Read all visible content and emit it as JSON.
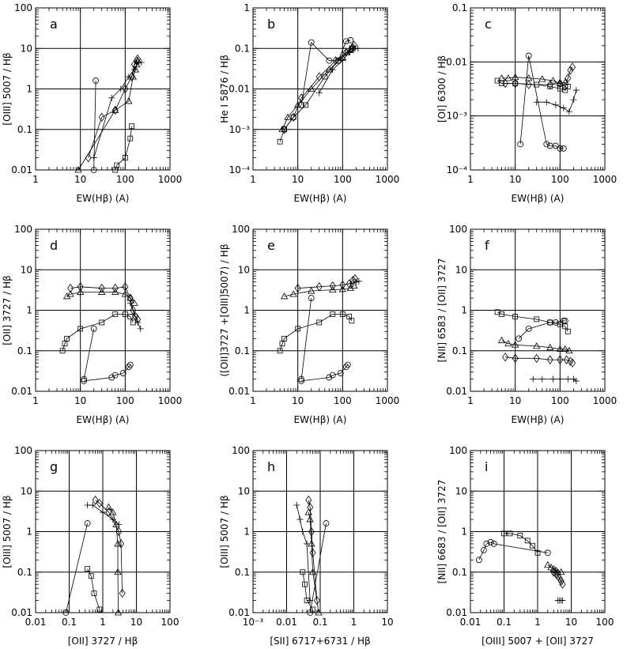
{
  "chart_data": [
    {
      "panel": "a",
      "type": "line",
      "xscale": "log",
      "yscale": "log",
      "xlim": [
        1,
        1000
      ],
      "ylim": [
        0.01,
        100
      ],
      "xticks": [
        "1",
        "10",
        "100",
        "1000"
      ],
      "yticks": [
        "0.01",
        "0.1",
        "1",
        "10",
        "100"
      ],
      "xlabel": "EW(Hβ) (A)",
      "ylabel": "[OIII] 5007 / Hβ",
      "series": [
        {
          "marker": "triangle",
          "x": [
            9,
            60,
            120,
            150,
            170,
            180,
            190
          ],
          "y": [
            0.01,
            0.3,
            0.5,
            2,
            3,
            4,
            5
          ]
        },
        {
          "marker": "diamond",
          "x": [
            15,
            30,
            60,
            100,
            140,
            160,
            180,
            190
          ],
          "y": [
            0.02,
            0.2,
            0.3,
            1,
            2,
            4,
            5,
            5.5
          ]
        },
        {
          "marker": "plus",
          "x": [
            20,
            50,
            80,
            120,
            160,
            200,
            230
          ],
          "y": [
            0.02,
            0.6,
            1,
            2,
            3,
            4.5,
            4.5
          ]
        },
        {
          "marker": "circle",
          "x": [
            20,
            22
          ],
          "y": [
            0.01,
            1.6
          ]
        },
        {
          "marker": "square",
          "x": [
            60,
            65,
            100,
            130,
            140
          ],
          "y": [
            0.01,
            0.013,
            0.02,
            0.06,
            0.12
          ]
        }
      ]
    },
    {
      "panel": "b",
      "type": "line",
      "xscale": "log",
      "yscale": "log",
      "xlim": [
        1,
        1000
      ],
      "ylim": [
        0.0001,
        1
      ],
      "xticks": [
        "1",
        "10",
        "100",
        "1000"
      ],
      "yticks": [
        "10⁻⁴",
        "10⁻³",
        "0.01",
        "0.1",
        "1"
      ],
      "xlabel": "EW(Hβ) (A)",
      "ylabel": "He I 5876 / Hβ",
      "series": [
        {
          "marker": "square",
          "x": [
            4,
            5,
            8,
            15,
            40,
            80,
            130,
            160
          ],
          "y": [
            0.0005,
            0.001,
            0.002,
            0.004,
            0.02,
            0.05,
            0.08,
            0.1
          ]
        },
        {
          "marker": "triangle",
          "x": [
            4.5,
            6,
            10,
            20,
            50,
            100,
            150,
            170
          ],
          "y": [
            0.001,
            0.002,
            0.004,
            0.01,
            0.03,
            0.06,
            0.09,
            0.11
          ]
        },
        {
          "marker": "diamond",
          "x": [
            5,
            8,
            12,
            30,
            70,
            120,
            160,
            180
          ],
          "y": [
            0.001,
            0.002,
            0.006,
            0.02,
            0.05,
            0.08,
            0.1,
            0.12
          ]
        },
        {
          "marker": "circle",
          "x": [
            12,
            20,
            50,
            80,
            120,
            150
          ],
          "y": [
            0.004,
            0.14,
            0.05,
            0.05,
            0.15,
            0.16
          ]
        },
        {
          "marker": "plus",
          "x": [
            30,
            60,
            100,
            140,
            190,
            220
          ],
          "y": [
            0.008,
            0.03,
            0.05,
            0.08,
            0.1,
            0.1
          ]
        }
      ]
    },
    {
      "panel": "c",
      "type": "line",
      "xscale": "log",
      "yscale": "log",
      "xlim": [
        1,
        1000
      ],
      "ylim": [
        0.0001,
        0.1
      ],
      "xticks": [
        "1",
        "10",
        "100",
        "1000"
      ],
      "yticks": [
        "10⁻⁴",
        "10⁻³",
        "0.01",
        "0.1"
      ],
      "xlabel": "EW(Hβ) (A)",
      "ylabel": "[OI] 6300 / Hβ",
      "series": [
        {
          "marker": "square",
          "x": [
            4,
            5,
            10,
            30,
            60,
            100,
            130,
            150
          ],
          "y": [
            0.0045,
            0.004,
            0.004,
            0.0038,
            0.0035,
            0.0032,
            0.003,
            0.0035
          ]
        },
        {
          "marker": "triangle",
          "x": [
            5,
            7,
            10,
            20,
            40,
            70,
            100,
            130
          ],
          "y": [
            0.005,
            0.005,
            0.0052,
            0.005,
            0.0048,
            0.0045,
            0.004,
            0.0042
          ]
        },
        {
          "marker": "diamond",
          "x": [
            6,
            10,
            20,
            60,
            100,
            130,
            150,
            170,
            190
          ],
          "y": [
            0.004,
            0.004,
            0.0038,
            0.0038,
            0.004,
            0.0035,
            0.005,
            0.007,
            0.008
          ]
        },
        {
          "marker": "circle",
          "x": [
            13,
            20,
            50,
            60,
            80,
            100,
            120
          ],
          "y": [
            0.0003,
            0.013,
            0.0003,
            0.00028,
            0.00028,
            0.00025,
            0.00025
          ]
        },
        {
          "marker": "plus",
          "x": [
            30,
            50,
            80,
            120,
            160,
            200,
            230
          ],
          "y": [
            0.0018,
            0.0018,
            0.0016,
            0.0014,
            0.0012,
            0.002,
            0.003
          ]
        }
      ]
    },
    {
      "panel": "d",
      "type": "line",
      "xscale": "log",
      "yscale": "log",
      "xlim": [
        1,
        1000
      ],
      "ylim": [
        0.01,
        100
      ],
      "xticks": [
        "1",
        "10",
        "100",
        "1000"
      ],
      "yticks": [
        "0.01",
        "0.1",
        "1",
        "10",
        "100"
      ],
      "xlabel": "EW(Hβ) (A)",
      "ylabel": "[OII] 3727 / Hβ",
      "series": [
        {
          "marker": "diamond",
          "x": [
            6,
            10,
            30,
            60,
            100,
            130,
            150,
            170,
            190
          ],
          "y": [
            3.5,
            3.8,
            3.5,
            3.5,
            3.8,
            2,
            1,
            0.7,
            0.6
          ]
        },
        {
          "marker": "triangle",
          "x": [
            5,
            6,
            10,
            30,
            60,
            100,
            130,
            160
          ],
          "y": [
            2.2,
            2.5,
            2.8,
            2.8,
            2.8,
            2.5,
            2,
            1.5
          ]
        },
        {
          "marker": "square",
          "x": [
            4,
            4.5,
            5,
            10,
            30,
            60,
            100,
            130,
            150
          ],
          "y": [
            0.1,
            0.15,
            0.2,
            0.35,
            0.5,
            0.8,
            0.8,
            0.7,
            0.5
          ]
        },
        {
          "marker": "circle",
          "x": [
            12,
            20
          ],
          "y": [
            0.02,
            0.35
          ]
        },
        {
          "marker": "circle",
          "x": [
            12,
            50,
            60,
            90,
            120,
            130
          ],
          "y": [
            0.018,
            0.022,
            0.025,
            0.028,
            0.04,
            0.045
          ]
        },
        {
          "marker": "plus",
          "x": [
            130,
            160,
            190,
            220
          ],
          "y": [
            1.5,
            0.8,
            0.5,
            0.35
          ]
        }
      ]
    },
    {
      "panel": "e",
      "type": "line",
      "xscale": "log",
      "yscale": "log",
      "xlim": [
        1,
        1000
      ],
      "ylim": [
        0.01,
        100
      ],
      "xticks": [
        "1",
        "10",
        "100",
        "1000"
      ],
      "yticks": [
        "0.01",
        "0.1",
        "1",
        "10",
        "100"
      ],
      "xlabel": "EW(Hβ) (A)",
      "ylabel": "([OII]3727 +[OIII]5007) / Hβ",
      "series": [
        {
          "marker": "diamond",
          "x": [
            10,
            30,
            60,
            100,
            140,
            170,
            190
          ],
          "y": [
            3.5,
            3.8,
            4,
            4.2,
            4.5,
            5.5,
            6
          ]
        },
        {
          "marker": "triangle",
          "x": [
            5,
            8,
            20,
            60,
            100,
            150,
            180
          ],
          "y": [
            2.2,
            2.5,
            3,
            3.2,
            3.3,
            3.5,
            4
          ]
        },
        {
          "marker": "plus",
          "x": [
            150,
            200,
            230
          ],
          "y": [
            4.5,
            5,
            5.2
          ]
        },
        {
          "marker": "square",
          "x": [
            4,
            4.5,
            5,
            10,
            30,
            60,
            100,
            140,
            160
          ],
          "y": [
            0.1,
            0.15,
            0.2,
            0.35,
            0.5,
            0.8,
            0.8,
            0.7,
            0.55
          ]
        },
        {
          "marker": "circle",
          "x": [
            12,
            20
          ],
          "y": [
            0.02,
            2
          ]
        },
        {
          "marker": "circle",
          "x": [
            12,
            50,
            60,
            90,
            120,
            130
          ],
          "y": [
            0.018,
            0.022,
            0.025,
            0.028,
            0.04,
            0.045
          ]
        }
      ]
    },
    {
      "panel": "f",
      "type": "line",
      "xscale": "log",
      "yscale": "log",
      "xlim": [
        1,
        1000
      ],
      "ylim": [
        0.01,
        100
      ],
      "xticks": [
        "1",
        "10",
        "100",
        "1000"
      ],
      "yticks": [
        "0.01",
        "0.1",
        "1",
        "10",
        "100"
      ],
      "xlabel": "EW(Hβ) (A)",
      "ylabel": "[NII] 6583 / [OII] 3727",
      "series": [
        {
          "marker": "square",
          "x": [
            4,
            5,
            10,
            30,
            60,
            100,
            130,
            150
          ],
          "y": [
            0.9,
            0.8,
            0.7,
            0.6,
            0.5,
            0.45,
            0.4,
            0.3
          ]
        },
        {
          "marker": "circle",
          "x": [
            12,
            20,
            60,
            80,
            120,
            130
          ],
          "y": [
            0.2,
            0.35,
            0.5,
            0.5,
            0.55,
            0.55
          ]
        },
        {
          "marker": "triangle",
          "x": [
            5,
            7,
            10,
            30,
            60,
            100,
            130,
            160
          ],
          "y": [
            0.18,
            0.15,
            0.14,
            0.13,
            0.12,
            0.11,
            0.11,
            0.1
          ]
        },
        {
          "marker": "diamond",
          "x": [
            6,
            10,
            30,
            60,
            100,
            140,
            170,
            190
          ],
          "y": [
            0.07,
            0.065,
            0.065,
            0.06,
            0.06,
            0.06,
            0.055,
            0.05
          ]
        },
        {
          "marker": "plus",
          "x": [
            25,
            40,
            70,
            100,
            150,
            200,
            230
          ],
          "y": [
            0.02,
            0.02,
            0.02,
            0.02,
            0.02,
            0.02,
            0.018
          ]
        }
      ]
    },
    {
      "panel": "g",
      "type": "line",
      "xscale": "log",
      "yscale": "log",
      "xlim": [
        0.01,
        100
      ],
      "ylim": [
        0.01,
        100
      ],
      "xticks": [
        "0.01",
        "0.1",
        "1",
        "10",
        "100"
      ],
      "yticks": [
        "0.01",
        "0.1",
        "1",
        "10",
        "100"
      ],
      "xlabel": "[OII] 3727 / Hβ",
      "ylabel": "[OIII] 5007 / Hβ",
      "series": [
        {
          "marker": "plus",
          "x": [
            0.35,
            0.5,
            1,
            2,
            3
          ],
          "y": [
            4.5,
            4.5,
            3,
            2,
            1.5
          ]
        },
        {
          "marker": "diamond",
          "x": [
            0.6,
            0.8,
            1.5,
            3,
            3.5,
            3.8
          ],
          "y": [
            6,
            5,
            3,
            1,
            0.5,
            0.03
          ]
        },
        {
          "marker": "triangle",
          "x": [
            1.5,
            2,
            2.5,
            2.8,
            2.8,
            2.9
          ],
          "y": [
            4,
            3,
            1.5,
            0.5,
            0.1,
            0.01
          ]
        },
        {
          "marker": "circle",
          "x": [
            0.08,
            0.35
          ],
          "y": [
            0.01,
            1.6
          ]
        },
        {
          "marker": "square",
          "x": [
            0.35,
            0.45,
            0.55,
            0.8
          ],
          "y": [
            0.12,
            0.08,
            0.03,
            0.012
          ]
        }
      ]
    },
    {
      "panel": "h",
      "type": "line",
      "xscale": "log",
      "yscale": "log",
      "xlim": [
        0.001,
        10
      ],
      "ylim": [
        0.01,
        100
      ],
      "xticks": [
        "10⁻³",
        "0.01",
        "0.1",
        "1",
        "10"
      ],
      "yticks": [
        "0.01",
        "0.1",
        "1",
        "10",
        "100"
      ],
      "xlabel": "[SII] 6717+6731 / Hβ",
      "ylabel": "[OIII] 5007 / Hβ",
      "series": [
        {
          "marker": "plus",
          "x": [
            0.02,
            0.025,
            0.03,
            0.04,
            0.05
          ],
          "y": [
            4.5,
            2,
            1,
            0.5,
            0.02
          ]
        },
        {
          "marker": "diamond",
          "x": [
            0.045,
            0.05,
            0.055,
            0.06,
            0.08
          ],
          "y": [
            6,
            4,
            1,
            0.3,
            0.02
          ]
        },
        {
          "marker": "triangle",
          "x": [
            0.045,
            0.05,
            0.055,
            0.06,
            0.09
          ],
          "y": [
            3,
            2,
            0.5,
            0.1,
            0.01
          ]
        },
        {
          "marker": "square",
          "x": [
            0.03,
            0.035,
            0.04,
            0.06
          ],
          "y": [
            0.1,
            0.05,
            0.02,
            0.012
          ]
        },
        {
          "marker": "circle",
          "x": [
            0.05,
            0.15
          ],
          "y": [
            0.01,
            1.6
          ]
        }
      ]
    },
    {
      "panel": "i",
      "type": "line",
      "xscale": "log",
      "yscale": "log",
      "xlim": [
        0.01,
        100
      ],
      "ylim": [
        0.01,
        100
      ],
      "xticks": [
        "0.01",
        "0.1",
        "1",
        "10",
        "100"
      ],
      "yticks": [
        "0.01",
        "0.1",
        "1",
        "10",
        "100"
      ],
      "xlabel": "[OIII] 5007 + [OII] 3727",
      "ylabel": "[NII] 6683 / [OII] 3727",
      "series": [
        {
          "marker": "circle",
          "x": [
            0.018,
            0.025,
            0.03,
            0.04,
            0.05,
            2
          ],
          "y": [
            0.2,
            0.35,
            0.5,
            0.55,
            0.5,
            0.3
          ]
        },
        {
          "marker": "square",
          "x": [
            0.1,
            0.15,
            0.3,
            0.5,
            0.7,
            1
          ],
          "y": [
            0.9,
            0.9,
            0.8,
            0.6,
            0.45,
            0.3
          ]
        },
        {
          "marker": "triangle",
          "x": [
            2,
            2.5,
            3,
            3.5,
            4,
            5
          ],
          "y": [
            0.15,
            0.13,
            0.12,
            0.11,
            0.1,
            0.1
          ]
        },
        {
          "marker": "diamond",
          "x": [
            3,
            3.5,
            4,
            4.5,
            5,
            5.5
          ],
          "y": [
            0.1,
            0.09,
            0.08,
            0.07,
            0.06,
            0.05
          ]
        },
        {
          "marker": "plus",
          "x": [
            4,
            4.5,
            5,
            5.5
          ],
          "y": [
            0.02,
            0.02,
            0.02,
            0.02
          ]
        }
      ]
    }
  ]
}
